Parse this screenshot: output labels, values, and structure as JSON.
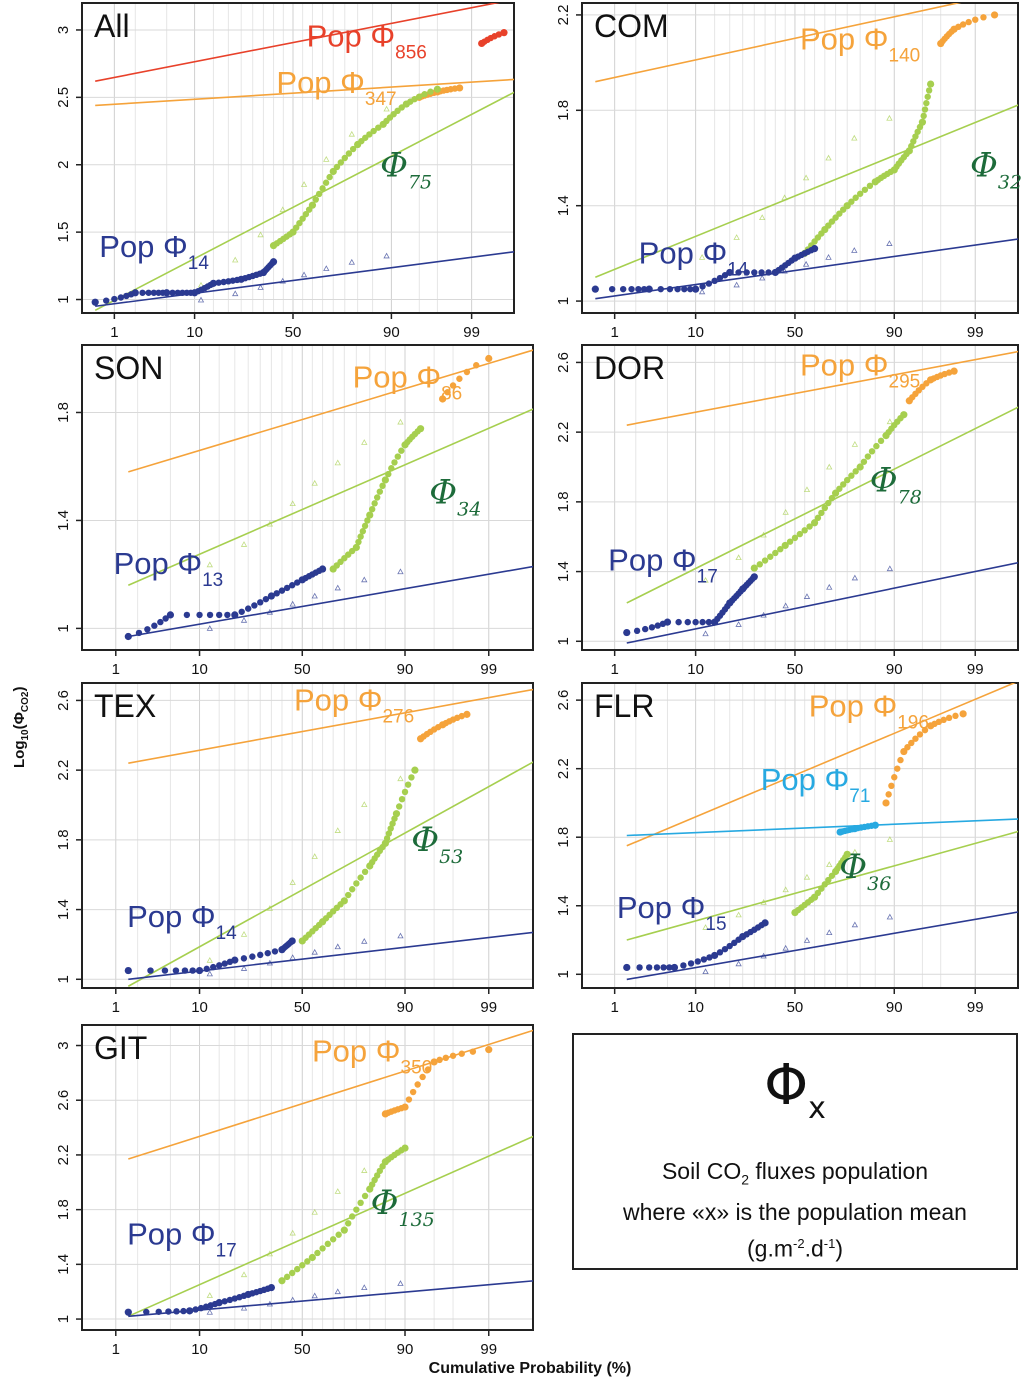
{
  "figure": {
    "y_axis_label_main": "Log",
    "y_axis_label_sub": "10",
    "y_axis_label_paren": "(Φ",
    "y_axis_label_co2": "CO2",
    "y_axis_label_close": ")",
    "x_axis_label": "Cumulative Probability (%)"
  },
  "legend": {
    "symbol": "Φ",
    "symbol_sub": "x",
    "line1_pre": "Soil CO",
    "line1_sub": "2",
    "line1_post": " fluxes population",
    "line2": "where «x» is the population mean",
    "line3_pre": "(g.m",
    "line3_sup1": "-2",
    "line3_mid": ".d",
    "line3_sup2": "-1",
    "line3_post": ")"
  },
  "colors": {
    "red": "#e8412a",
    "orange": "#f5a33b",
    "lightgreen": "#a6cf4f",
    "darkgreen": "#1d6b3a",
    "navy": "#2b3a91",
    "cyan": "#27a9e1"
  },
  "chart_data": [
    {
      "type": "scatter",
      "title": "All",
      "x_ticks": [
        "1",
        "10",
        "50",
        "90",
        "99"
      ],
      "y_ticks": [
        "1",
        "1.5",
        "2",
        "2.5",
        "3"
      ],
      "ylim": [
        0.9,
        3.2
      ],
      "series": [
        {
          "name": "Pop Φ",
          "name_sub": "856",
          "color": "red",
          "line": [
            [
              0.5,
              2.62
            ],
            [
              99.9,
              3.25
            ]
          ],
          "points": [
            [
              99.3,
              2.9
            ],
            [
              99.7,
              2.98
            ]
          ]
        },
        {
          "name": "Pop Φ",
          "name_sub": "347",
          "color": "orange",
          "line": [
            [
              0.5,
              2.44
            ],
            [
              99.9,
              2.64
            ]
          ],
          "points": [
            [
              95,
              2.5
            ],
            [
              97,
              2.54
            ],
            [
              98.5,
              2.57
            ]
          ]
        },
        {
          "name": "Φ",
          "name_sub": "75",
          "color": "lightgreen",
          "italic_label_color": "darkgreen",
          "line": [
            [
              0.5,
              0.92
            ],
            [
              99.9,
              2.6
            ]
          ],
          "points": [
            [
              40,
              1.4
            ],
            [
              50,
              1.5
            ],
            [
              60,
              1.7
            ],
            [
              70,
              1.95
            ],
            [
              80,
              2.15
            ],
            [
              88,
              2.3
            ],
            [
              93,
              2.45
            ],
            [
              97,
              2.56
            ]
          ]
        },
        {
          "name": "Pop Φ",
          "name_sub": "14",
          "color": "navy",
          "line": [
            [
              0.5,
              0.95
            ],
            [
              99.9,
              1.37
            ]
          ],
          "points": [
            [
              0.5,
              0.98
            ],
            [
              2,
              1.05
            ],
            [
              5,
              1.05
            ],
            [
              10,
              1.05
            ],
            [
              15,
              1.12
            ],
            [
              25,
              1.15
            ],
            [
              35,
              1.2
            ],
            [
              40,
              1.28
            ]
          ]
        }
      ]
    },
    {
      "type": "scatter",
      "title": "COM",
      "x_ticks": [
        "1",
        "10",
        "50",
        "90",
        "99"
      ],
      "y_ticks": [
        "1",
        "1.4",
        "1.8",
        "2.2"
      ],
      "ylim": [
        0.95,
        2.25
      ],
      "series": [
        {
          "name": "Pop Φ",
          "name_sub": "140",
          "color": "orange",
          "line": [
            [
              0.5,
              1.92
            ],
            [
              99.9,
              2.32
            ]
          ],
          "points": [
            [
              97,
              2.08
            ],
            [
              98,
              2.14
            ],
            [
              99.5,
              2.2
            ]
          ]
        },
        {
          "name": "Φ",
          "name_sub": "32",
          "color": "lightgreen",
          "italic_label_color": "darkgreen",
          "line": [
            [
              0.5,
              1.1
            ],
            [
              99.9,
              1.85
            ]
          ],
          "points": [
            [
              55,
              1.2
            ],
            [
              65,
              1.3
            ],
            [
              75,
              1.4
            ],
            [
              85,
              1.5
            ],
            [
              90,
              1.55
            ],
            [
              93,
              1.63
            ],
            [
              95,
              1.75
            ],
            [
              96,
              1.91
            ]
          ]
        },
        {
          "name": "Pop Φ",
          "name_sub": "14",
          "color": "navy",
          "line": [
            [
              0.5,
              1.01
            ],
            [
              99.9,
              1.27
            ]
          ],
          "points": [
            [
              0.5,
              1.05
            ],
            [
              3,
              1.05
            ],
            [
              10,
              1.05
            ],
            [
              20,
              1.12
            ],
            [
              40,
              1.12
            ],
            [
              50,
              1.18
            ],
            [
              60,
              1.22
            ]
          ]
        }
      ]
    },
    {
      "type": "scatter",
      "title": "SON",
      "x_ticks": [
        "1",
        "10",
        "50",
        "90",
        "99"
      ],
      "y_ticks": [
        "1",
        "1.4",
        "1.8"
      ],
      "ylim": [
        0.92,
        2.05
      ],
      "series": [
        {
          "name": "Pop Φ",
          "name_sub": "86",
          "color": "orange",
          "line": [
            [
              1.5,
              1.58
            ],
            [
              99.9,
              2.05
            ]
          ],
          "points": [
            [
              96,
              1.85
            ],
            [
              99,
              2.0
            ]
          ]
        },
        {
          "name": "Φ",
          "name_sub": "34",
          "color": "lightgreen",
          "italic_label_color": "darkgreen",
          "line": [
            [
              1.5,
              1.16
            ],
            [
              99.9,
              1.84
            ]
          ],
          "points": [
            [
              65,
              1.22
            ],
            [
              75,
              1.3
            ],
            [
              80,
              1.42
            ],
            [
              85,
              1.55
            ],
            [
              90,
              1.68
            ],
            [
              93,
              1.74
            ]
          ]
        },
        {
          "name": "Pop Φ",
          "name_sub": "13",
          "color": "navy",
          "line": [
            [
              1.5,
              0.97
            ],
            [
              99.9,
              1.24
            ]
          ],
          "points": [
            [
              1.5,
              0.97
            ],
            [
              5,
              1.05
            ],
            [
              20,
              1.05
            ],
            [
              35,
              1.12
            ],
            [
              50,
              1.18
            ],
            [
              60,
              1.22
            ]
          ]
        }
      ]
    },
    {
      "type": "scatter",
      "title": "DOR",
      "x_ticks": [
        "1",
        "10",
        "50",
        "90",
        "99"
      ],
      "y_ticks": [
        "1",
        "1.4",
        "1.8",
        "2.2",
        "2.6"
      ],
      "ylim": [
        0.95,
        2.7
      ],
      "series": [
        {
          "name": "Pop Φ",
          "name_sub": "295",
          "color": "orange",
          "line": [
            [
              1.5,
              2.24
            ],
            [
              99.9,
              2.68
            ]
          ],
          "points": [
            [
              93,
              2.38
            ],
            [
              96,
              2.5
            ],
            [
              98,
              2.55
            ]
          ]
        },
        {
          "name": "Φ",
          "name_sub": "78",
          "color": "lightgreen",
          "italic_label_color": "darkgreen",
          "line": [
            [
              1.5,
              1.22
            ],
            [
              99.9,
              2.39
            ]
          ],
          "points": [
            [
              30,
              1.42
            ],
            [
              45,
              1.55
            ],
            [
              60,
              1.68
            ],
            [
              70,
              1.85
            ],
            [
              80,
              2.0
            ],
            [
              88,
              2.18
            ],
            [
              92,
              2.3
            ]
          ]
        },
        {
          "name": "Pop Φ",
          "name_sub": "17",
          "color": "navy",
          "line": [
            [
              1.5,
              0.99
            ],
            [
              99.9,
              1.47
            ]
          ],
          "points": [
            [
              1.5,
              1.05
            ],
            [
              5,
              1.11
            ],
            [
              15,
              1.11
            ],
            [
              20,
              1.22
            ],
            [
              25,
              1.3
            ],
            [
              30,
              1.37
            ]
          ]
        }
      ]
    },
    {
      "type": "scatter",
      "title": "TEX",
      "x_ticks": [
        "1",
        "10",
        "50",
        "90",
        "99"
      ],
      "y_ticks": [
        "1",
        "1.4",
        "1.8",
        "2.2",
        "2.6"
      ],
      "ylim": [
        0.95,
        2.7
      ],
      "series": [
        {
          "name": "Pop Φ",
          "name_sub": "276",
          "color": "orange",
          "line": [
            [
              1.5,
              2.24
            ],
            [
              99.9,
              2.68
            ]
          ],
          "points": [
            [
              93,
              2.38
            ],
            [
              96,
              2.46
            ],
            [
              98,
              2.52
            ]
          ]
        },
        {
          "name": "Φ",
          "name_sub": "53",
          "color": "lightgreen",
          "italic_label_color": "darkgreen",
          "line": [
            [
              1.5,
              0.96
            ],
            [
              99.9,
              2.3
            ]
          ],
          "points": [
            [
              50,
              1.22
            ],
            [
              60,
              1.33
            ],
            [
              70,
              1.45
            ],
            [
              80,
              1.65
            ],
            [
              85,
              1.78
            ],
            [
              88,
              1.95
            ],
            [
              92,
              2.2
            ]
          ]
        },
        {
          "name": "Pop Φ",
          "name_sub": "14",
          "color": "navy",
          "line": [
            [
              1.5,
              1.0
            ],
            [
              99.9,
              1.28
            ]
          ],
          "points": [
            [
              1.5,
              1.05
            ],
            [
              10,
              1.05
            ],
            [
              20,
              1.11
            ],
            [
              40,
              1.17
            ],
            [
              45,
              1.22
            ]
          ]
        }
      ]
    },
    {
      "type": "scatter",
      "title": "FLR",
      "x_ticks": [
        "1",
        "10",
        "50",
        "90",
        "99"
      ],
      "y_ticks": [
        "1",
        "1.4",
        "1.8",
        "2.2",
        "2.6"
      ],
      "ylim": [
        0.92,
        2.7
      ],
      "series": [
        {
          "name": "Pop Φ",
          "name_sub": "196",
          "color": "orange",
          "line": [
            [
              1.5,
              1.75
            ],
            [
              99.9,
              2.75
            ]
          ],
          "points": [
            [
              88,
              2.0
            ],
            [
              92,
              2.3
            ],
            [
              96,
              2.45
            ],
            [
              98.5,
              2.52
            ]
          ]
        },
        {
          "name": "Pop Φ",
          "name_sub": "71",
          "color": "cyan",
          "line": [
            [
              1.5,
              1.81
            ],
            [
              99.9,
              1.91
            ]
          ],
          "points": [
            [
              72,
              1.83
            ],
            [
              78,
              1.85
            ],
            [
              85,
              1.87
            ]
          ]
        },
        {
          "name": "Φ",
          "name_sub": "36",
          "color": "lightgreen",
          "italic_label_color": "darkgreen",
          "line": [
            [
              1.5,
              1.2
            ],
            [
              99.9,
              1.86
            ]
          ],
          "points": [
            [
              50,
              1.36
            ],
            [
              60,
              1.45
            ],
            [
              70,
              1.6
            ],
            [
              75,
              1.7
            ]
          ]
        },
        {
          "name": "Pop Φ",
          "name_sub": "15",
          "color": "navy",
          "line": [
            [
              1.5,
              0.97
            ],
            [
              99.9,
              1.38
            ]
          ],
          "points": [
            [
              1.5,
              1.04
            ],
            [
              6,
              1.04
            ],
            [
              15,
              1.11
            ],
            [
              25,
              1.22
            ],
            [
              35,
              1.3
            ]
          ]
        }
      ]
    },
    {
      "type": "scatter",
      "title": "GIT",
      "x_ticks": [
        "1",
        "10",
        "50",
        "90",
        "99"
      ],
      "y_ticks": [
        "1",
        "1.4",
        "1.8",
        "2.2",
        "2.6",
        "3"
      ],
      "ylim": [
        0.92,
        3.15
      ],
      "series": [
        {
          "name": "Pop Φ",
          "name_sub": "350",
          "color": "orange",
          "line": [
            [
              1.5,
              2.17
            ],
            [
              99.9,
              3.15
            ]
          ],
          "points": [
            [
              85,
              2.5
            ],
            [
              90,
              2.55
            ],
            [
              95,
              2.88
            ],
            [
              99,
              2.97
            ]
          ]
        },
        {
          "name": "Φ",
          "name_sub": "135",
          "color": "lightgreen",
          "italic_label_color": "darkgreen",
          "line": [
            [
              1.5,
              1.02
            ],
            [
              99.9,
              2.39
            ]
          ],
          "points": [
            [
              40,
              1.28
            ],
            [
              55,
              1.45
            ],
            [
              70,
              1.65
            ],
            [
              80,
              1.95
            ],
            [
              85,
              2.15
            ],
            [
              90,
              2.25
            ]
          ]
        },
        {
          "name": "Pop Φ",
          "name_sub": "17",
          "color": "navy",
          "line": [
            [
              1.5,
              1.02
            ],
            [
              99.9,
              1.29
            ]
          ],
          "points": [
            [
              1.5,
              1.05
            ],
            [
              8,
              1.06
            ],
            [
              15,
              1.12
            ],
            [
              25,
              1.18
            ],
            [
              35,
              1.23
            ]
          ]
        }
      ]
    }
  ]
}
